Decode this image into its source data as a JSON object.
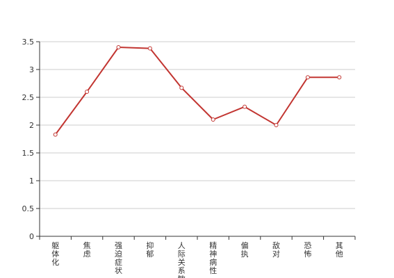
{
  "chart_data": {
    "type": "line",
    "categories": [
      "躯体化",
      "焦虑",
      "强迫症状",
      "抑郁",
      "人际关系敏感",
      "精神病性",
      "偏执",
      "敌对",
      "恐怖",
      "其他"
    ],
    "series": [
      {
        "values": [
          1.83,
          2.6,
          3.4,
          3.38,
          2.67,
          2.1,
          2.33,
          2.0,
          2.86,
          2.86
        ]
      }
    ],
    "ylim": [
      0,
      3.5
    ],
    "yticks": [
      "0",
      "0.5",
      "1",
      "1.5",
      "2",
      "2.5",
      "3",
      "3.5"
    ],
    "grid": "horizontal",
    "line_color": "#c23531",
    "grid_color": "#cccccc",
    "axis_color": "#333333"
  }
}
